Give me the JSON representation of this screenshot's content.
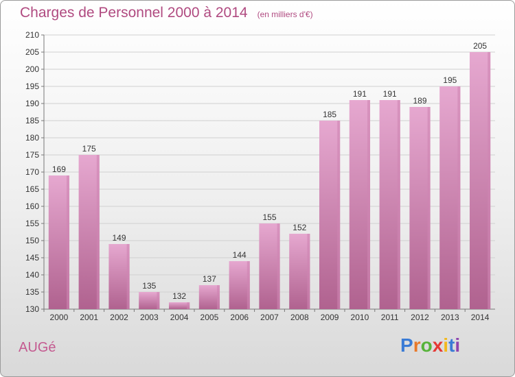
{
  "header": {
    "title": "Charges de Personnel 2000 à 2014",
    "subtitle": "(en milliers d'€)"
  },
  "footer": {
    "commune": "AUGé",
    "logo_text": "Proxiti",
    "logo_colors": [
      "#3a7bd5",
      "#e8792a",
      "#57b33a",
      "#e53935",
      "#f2b81c",
      "#3a7bd5",
      "#8e44ad"
    ]
  },
  "colors": {
    "bar_top": "#e6a8d0",
    "bar_bottom": "#b0628f",
    "bar_side": "#cf86b3",
    "title": "#b04a80"
  },
  "chart_data": {
    "type": "bar",
    "title": "Charges de Personnel 2000 à 2014",
    "subtitle": "(en milliers d'€)",
    "categories": [
      "2000",
      "2001",
      "2002",
      "2003",
      "2004",
      "2005",
      "2006",
      "2007",
      "2008",
      "2009",
      "2010",
      "2011",
      "2012",
      "2013",
      "2014"
    ],
    "values": [
      169,
      175,
      149,
      135,
      132,
      137,
      144,
      155,
      152,
      185,
      191,
      191,
      189,
      195,
      205
    ],
    "ylim": [
      130,
      210
    ],
    "yticks": [
      130,
      135,
      140,
      145,
      150,
      155,
      160,
      165,
      170,
      175,
      180,
      185,
      190,
      195,
      200,
      205,
      210
    ],
    "grid": true,
    "legend": "none"
  }
}
